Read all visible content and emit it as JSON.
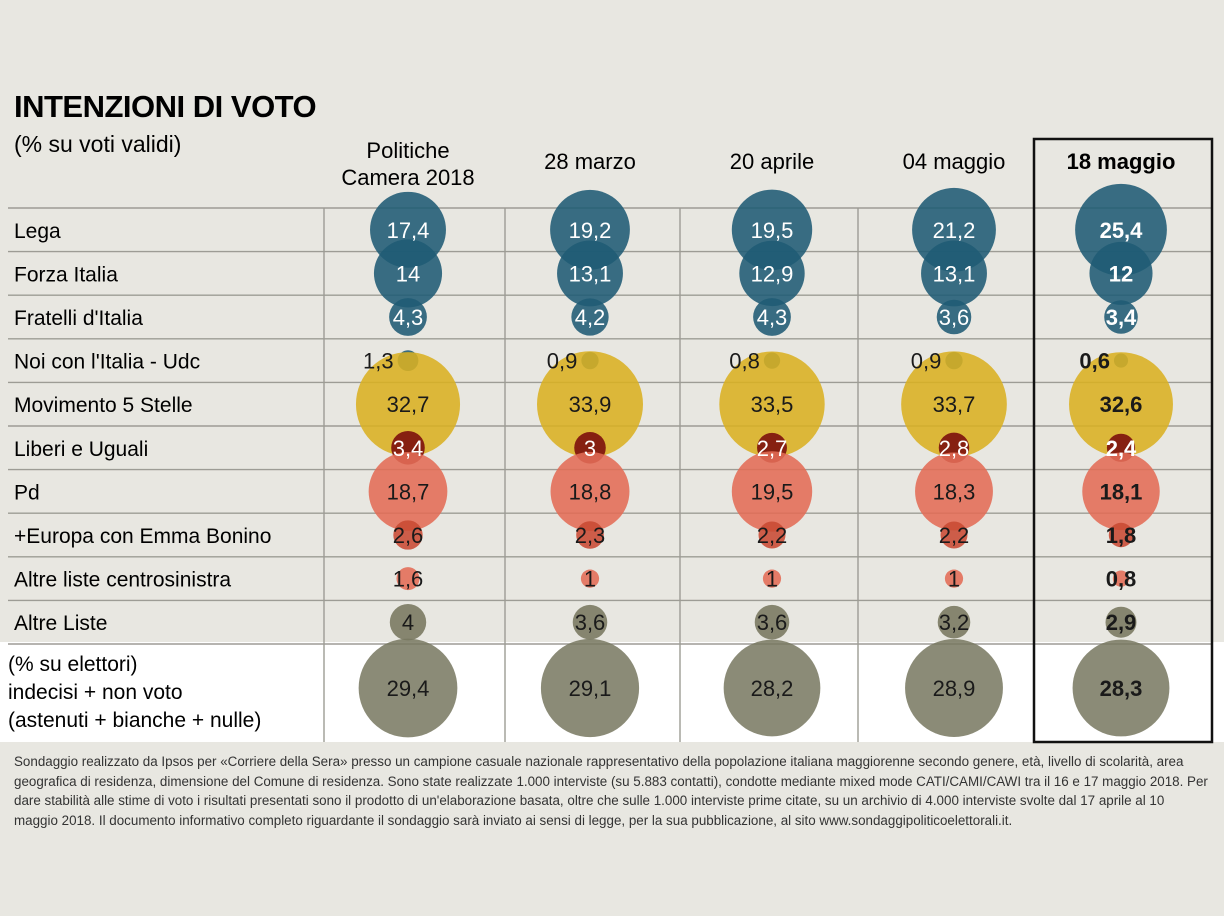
{
  "chart_data": {
    "type": "table",
    "title": "INTENZIONI DI VOTO",
    "subtitle": "(% su voti validi)",
    "columns": [
      {
        "label_lines": [
          "Politiche",
          "Camera 2018"
        ],
        "highlight": false
      },
      {
        "label_lines": [
          "28 marzo"
        ],
        "highlight": false
      },
      {
        "label_lines": [
          "20 aprile"
        ],
        "highlight": false
      },
      {
        "label_lines": [
          "04 maggio"
        ],
        "highlight": false
      },
      {
        "label_lines": [
          "18 maggio"
        ],
        "highlight": true
      }
    ],
    "rows": [
      {
        "label": "Lega",
        "color": "#1f5b74",
        "values": [
          "17,4",
          "19,2",
          "19,5",
          "21,2",
          "25,4"
        ]
      },
      {
        "label": "Forza Italia",
        "color": "#1f5b74",
        "values": [
          "14",
          "13,1",
          "12,9",
          "13,1",
          "12"
        ]
      },
      {
        "label": "Fratelli d'Italia",
        "color": "#1f5b74",
        "values": [
          "4,3",
          "4,2",
          "4,3",
          "3,6",
          "3,4"
        ]
      },
      {
        "label": "Noi con l'Italia - Udc",
        "color": "#1f5b74",
        "values": [
          "1,3",
          "0,9",
          "0,8",
          "0,9",
          "0,6"
        ]
      },
      {
        "label": "Movimento 5 Stelle",
        "color": "#dab021",
        "values": [
          "32,7",
          "33,9",
          "33,5",
          "33,7",
          "32,6"
        ]
      },
      {
        "label": "Liberi e Uguali",
        "color": "#7a0b0b",
        "values": [
          "3,4",
          "3",
          "2,7",
          "2,8",
          "2,4"
        ]
      },
      {
        "label": "Pd",
        "color": "#e36c55",
        "values": [
          "18,7",
          "18,8",
          "19,5",
          "18,3",
          "18,1"
        ]
      },
      {
        "label": "+Europa con Emma Bonino",
        "color": "#c84a33",
        "values": [
          "2,6",
          "2,3",
          "2,2",
          "2,2",
          "1,8"
        ]
      },
      {
        "label": "Altre liste centrosinistra",
        "color": "#e36c55",
        "values": [
          "1,6",
          "1",
          "1",
          "1",
          "0,8"
        ]
      },
      {
        "label": "Altre Liste",
        "color": "#77775f",
        "values": [
          "4",
          "3,6",
          "3,6",
          "3,2",
          "2,9"
        ]
      }
    ],
    "bottom_row": {
      "label_lines": [
        "(% su elettori)",
        "indecisi + non voto",
        "(astenuti + bianche + nulle)"
      ],
      "color": "#77775f",
      "values": [
        "29,4",
        "29,1",
        "28,2",
        "28,9",
        "28,3"
      ]
    },
    "note": "Sondaggio realizzato da Ipsos per «Corriere della Sera» presso un campione casuale nazionale rappresentativo della popolazione italiana maggiorenne secondo genere, età, livello di scolarità, area geografica di residenza, dimensione del Comune di residenza. Sono state realizzate 1.000 interviste (su 5.883 contatti), condotte mediante mixed mode CATI/CAMI/CAWI tra il 16 e 17 maggio 2018. Per dare stabilità alle stime di voto i risultati presentati sono il prodotto di un'elaborazione basata, oltre che sulle 1.000 interviste prime citate, su un archivio di 4.000 interviste svolte dal 17 aprile al 10 maggio 2018. Il documento informativo completo riguardante il sondaggio sarà inviato ai sensi di legge, per la sua pubblicazione, al sito www.sondaggipoliticoelettorali.it."
  }
}
